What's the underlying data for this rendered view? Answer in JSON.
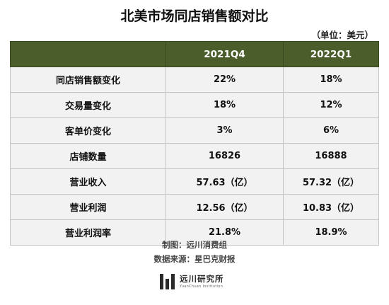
{
  "title": "北美市场同店销售额对比",
  "unit": "（单位：美元）",
  "table": {
    "columns": [
      "",
      "2021Q4",
      "2022Q1"
    ],
    "rows": [
      {
        "label": "同店销售额变化",
        "v1": "22%",
        "v2": "18%"
      },
      {
        "label": "交易量变化",
        "v1": "18%",
        "v2": "12%"
      },
      {
        "label": "客单价变化",
        "v1": "3%",
        "v2": "6%"
      },
      {
        "label": "店铺数量",
        "v1": "16826",
        "v2": "16888"
      },
      {
        "label": "营业收入",
        "v1": "57.63（亿）",
        "v2": "57.32（亿）"
      },
      {
        "label": "营业利润",
        "v1": "12.56（亿）",
        "v2": "10.83（亿）"
      },
      {
        "label": "营业利润率",
        "v1": "21.8%",
        "v2": "18.9%"
      }
    ]
  },
  "credits": {
    "maker": "制图：远川消费组",
    "source": "数据来源：星巴克财报"
  },
  "brand": {
    "name": "远川研究所",
    "sub": "YuanChuan Institution",
    "color": "#2a2a2a"
  },
  "colors": {
    "header_bg": "#4a5d2a",
    "row_bg": "#f2f2f2"
  }
}
